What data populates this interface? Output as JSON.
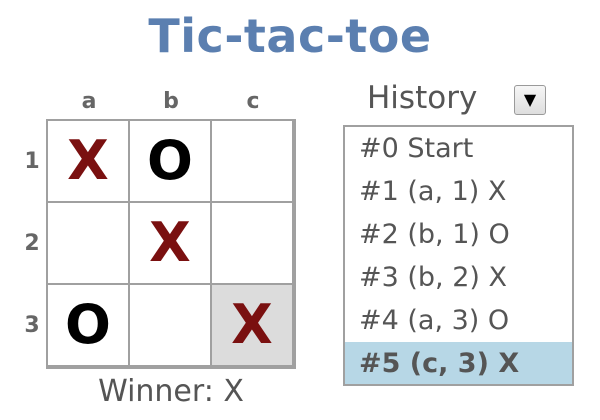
{
  "title": "Tic-tac-toe",
  "columns": [
    "a",
    "b",
    "c"
  ],
  "rows": [
    "1",
    "2",
    "3"
  ],
  "board": [
    [
      "X",
      "O",
      ""
    ],
    [
      "",
      "X",
      ""
    ],
    [
      "O",
      "",
      "X"
    ]
  ],
  "last_move": {
    "col": "c",
    "row": "3"
  },
  "status": {
    "label": "Winner:",
    "value": "X"
  },
  "history": {
    "label": "History",
    "dropdown_icon": "▼",
    "items": [
      "#0 Start",
      "#1 (a, 1) X",
      "#2 (b, 1) O",
      "#3 (b, 2) X",
      "#4 (a, 3) O",
      "#5 (c, 3) X"
    ],
    "selected_index": 5
  },
  "colors": {
    "title": "#5b7fb0",
    "x_mark": "#7a1010",
    "o_mark": "#000000",
    "grid": "#a0a0a0",
    "last_move_cell": "#dcdcdc",
    "selected_history": "#b7d7e6",
    "label_text": "#555555"
  }
}
